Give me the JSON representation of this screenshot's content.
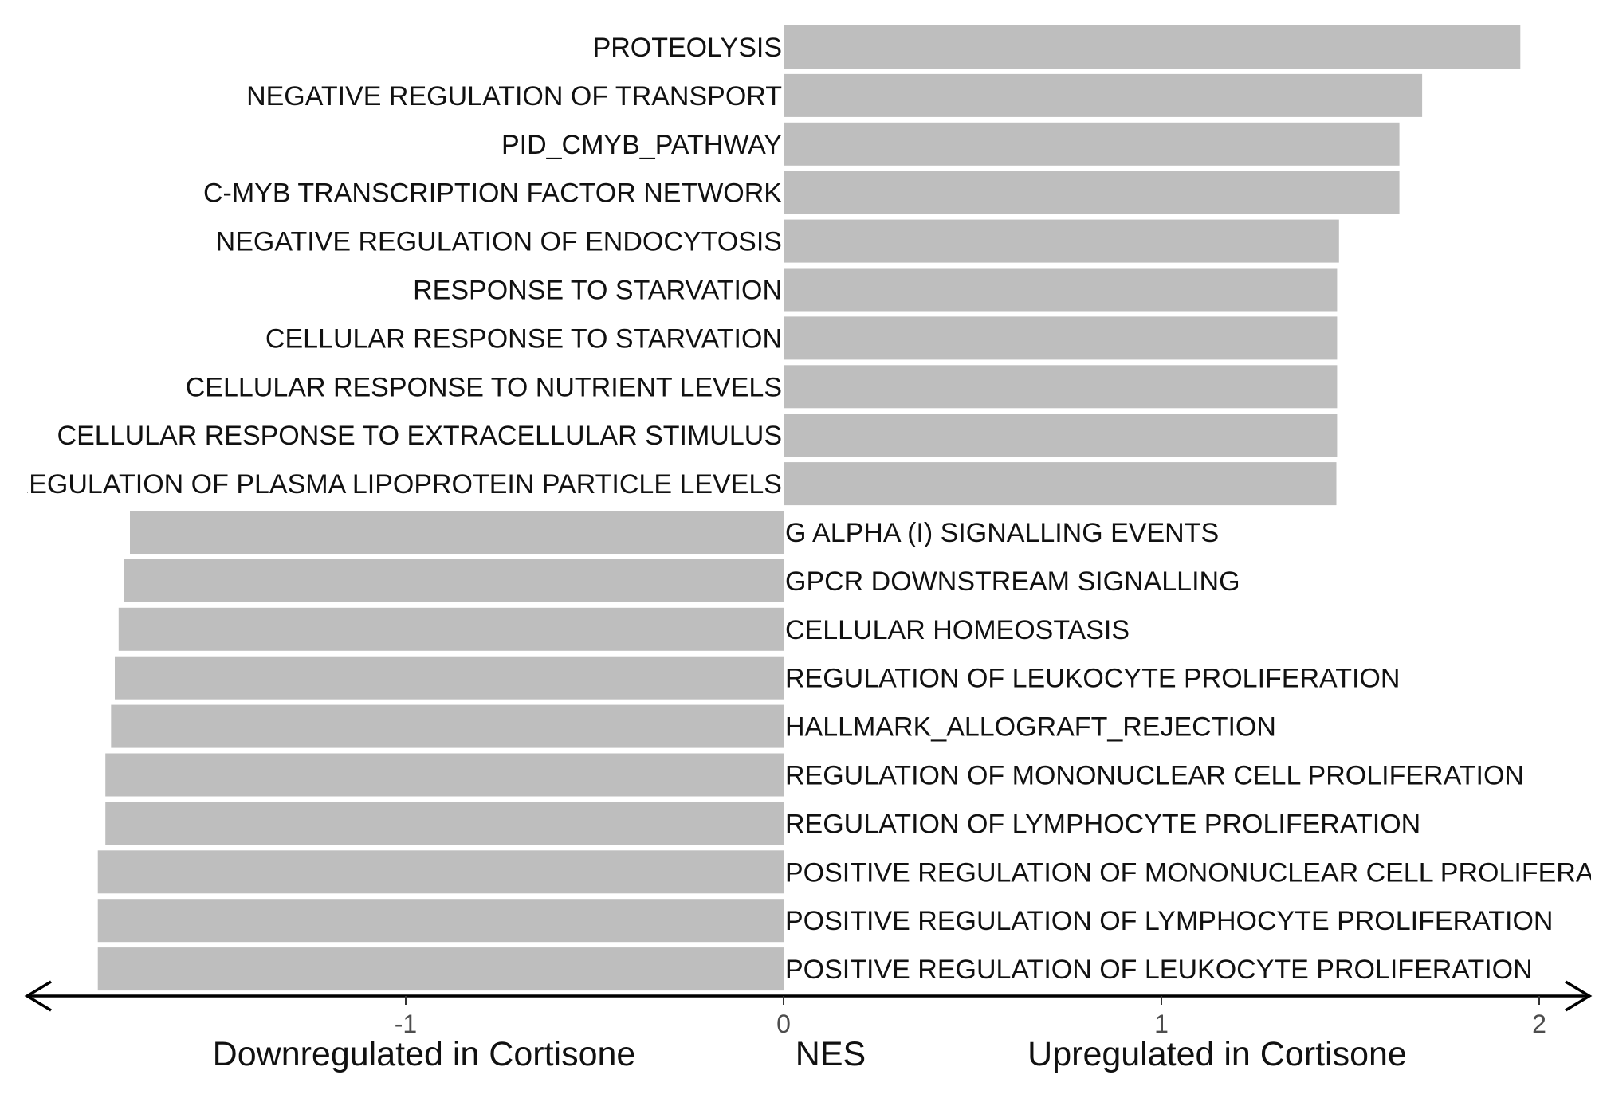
{
  "chart_data": {
    "type": "bar",
    "orientation": "horizontal",
    "grid": false,
    "legend": "none",
    "xlabel": "NES",
    "left_caption": "Downregulated in Cortisone",
    "right_caption": "Upregulated in Cortisone",
    "xlim": [
      -2.0,
      2.1
    ],
    "xticks": [
      -1,
      0,
      1,
      2
    ],
    "bar_color": "#bebebe",
    "categories": [
      "PROTEOLYSIS",
      "NEGATIVE REGULATION OF TRANSPORT",
      "PID_CMYB_PATHWAY",
      "C-MYB TRANSCRIPTION FACTOR NETWORK",
      "NEGATIVE REGULATION OF ENDOCYTOSIS",
      "RESPONSE TO STARVATION",
      "CELLULAR RESPONSE TO STARVATION",
      "CELLULAR RESPONSE TO NUTRIENT LEVELS",
      "CELLULAR RESPONSE TO EXTRACELLULAR STIMULUS",
      "REGULATION OF PLASMA LIPOPROTEIN PARTICLE LEVELS",
      "G ALPHA (I) SIGNALLING EVENTS",
      "GPCR DOWNSTREAM SIGNALLING",
      "CELLULAR HOMEOSTASIS",
      "REGULATION OF LEUKOCYTE PROLIFERATION",
      "HALLMARK_ALLOGRAFT_REJECTION",
      "REGULATION OF MONONUCLEAR CELL PROLIFERATION",
      "REGULATION OF LYMPHOCYTE PROLIFERATION",
      "POSITIVE REGULATION OF MONONUCLEAR CELL PROLIFERATION",
      "POSITIVE REGULATION OF LYMPHOCYTE PROLIFERATION",
      "POSITIVE REGULATION OF LEUKOCYTE PROLIFERATION"
    ],
    "values": [
      1.95,
      1.69,
      1.63,
      1.63,
      1.47,
      1.465,
      1.465,
      1.465,
      1.465,
      1.463,
      -1.73,
      -1.745,
      -1.76,
      -1.77,
      -1.78,
      -1.795,
      -1.795,
      -1.815,
      -1.815,
      -1.815
    ]
  }
}
